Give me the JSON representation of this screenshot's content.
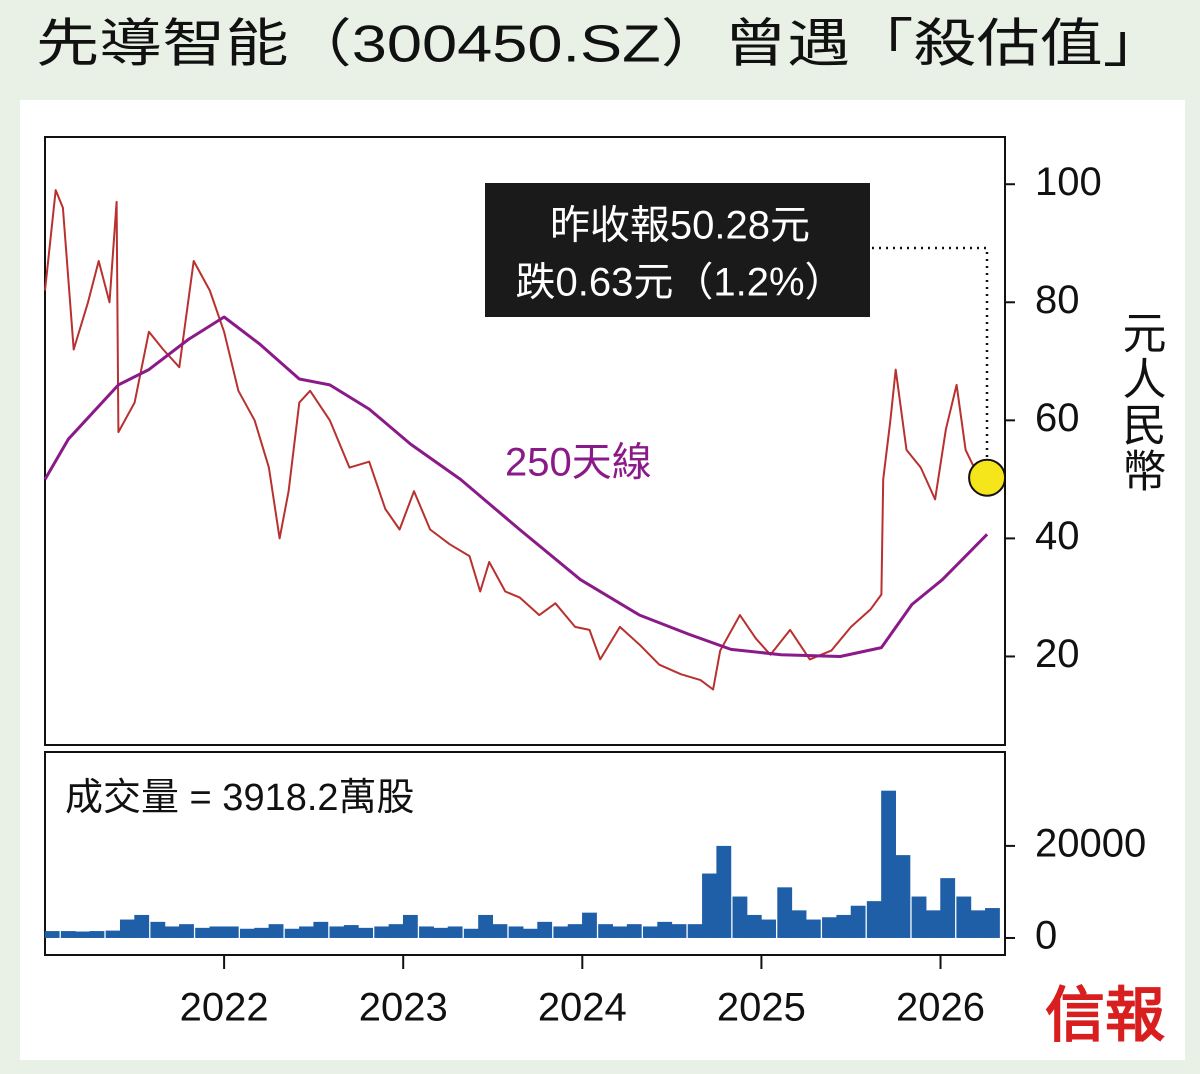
{
  "chart_data": [
    {
      "type": "line",
      "title": "先導智能（300450.SZ）曾遇「殺估值」",
      "y_label": "元人民幣",
      "annotations": [
        "昨收報50.28元",
        "跌0.63元（1.2%）"
      ],
      "xlim": [
        2021.0,
        2026.36
      ],
      "ylim": [
        5,
        108
      ],
      "yticks": [
        20,
        40,
        60,
        80,
        100
      ],
      "series": [
        {
          "color": "#b8312f",
          "x": [
            2021.0,
            2021.06,
            2021.1,
            2021.16,
            2021.24,
            2021.3,
            2021.36,
            2021.4,
            2021.41,
            2021.5,
            2021.58,
            2021.66,
            2021.75,
            2021.83,
            2021.92,
            2022.0,
            2022.08,
            2022.17,
            2022.25,
            2022.31,
            2022.36,
            2022.42,
            2022.48,
            2022.59,
            2022.7,
            2022.81,
            2022.9,
            2022.98,
            2023.06,
            2023.15,
            2023.26,
            2023.37,
            2023.43,
            2023.48,
            2023.57,
            2023.65,
            2023.76,
            2023.85,
            2023.96,
            2024.04,
            2024.1,
            2024.21,
            2024.32,
            2024.43,
            2024.55,
            2024.66,
            2024.73,
            2024.77,
            2024.88,
            2024.97,
            2025.05,
            2025.16,
            2025.27,
            2025.39,
            2025.5,
            2025.61,
            2025.67,
            2025.68,
            2025.72,
            2025.75,
            2025.81,
            2025.89,
            2025.97,
            2026.03,
            2026.09,
            2026.14,
            2026.22,
            2026.26
          ],
          "values": [
            82,
            99,
            96,
            72,
            80,
            87,
            80,
            97,
            58,
            63,
            75,
            72,
            69,
            87,
            82,
            75,
            65,
            60,
            52,
            40,
            48,
            63,
            65,
            60,
            52,
            53,
            45,
            41.5,
            48,
            41.5,
            39,
            37,
            31,
            36,
            31,
            30,
            27,
            29,
            25,
            24.5,
            19.5,
            25,
            22,
            18.6,
            17,
            16,
            14.4,
            21,
            27,
            23,
            20.3,
            24.5,
            19.5,
            21,
            25,
            28,
            30.5,
            50,
            60,
            68.6,
            55,
            52,
            46.6,
            58.5,
            66,
            55,
            50,
            50.28
          ]
        },
        {
          "name": "250天線",
          "color": "#8b1a89",
          "x": [
            2021.0,
            2021.13,
            2021.41,
            2021.58,
            2021.8,
            2022.0,
            2022.2,
            2022.42,
            2022.59,
            2022.81,
            2023.04,
            2023.32,
            2023.65,
            2023.99,
            2024.32,
            2024.6,
            2024.83,
            2025.11,
            2025.44,
            2025.67,
            2025.84,
            2026.01,
            2026.15,
            2026.26
          ],
          "values": [
            50,
            56.8,
            66,
            68.6,
            73.7,
            77.5,
            72.9,
            67,
            66,
            61.9,
            56,
            50,
            41.5,
            33,
            27,
            23.7,
            21.2,
            20.3,
            20,
            21.5,
            28.8,
            33,
            37.3,
            40.7
          ]
        }
      ]
    },
    {
      "type": "bar",
      "annotations": [
        "成交量 = 3918.2萬股"
      ],
      "color": "#1f5fa8",
      "xlim": [
        2021.0,
        2026.36
      ],
      "xticks": [
        2022,
        2023,
        2024,
        2025,
        2026
      ],
      "ylim": [
        -3700,
        40400
      ],
      "yticks": [
        0,
        20000
      ],
      "x": [
        2021.04,
        2021.13,
        2021.21,
        2021.29,
        2021.38,
        2021.46,
        2021.54,
        2021.63,
        2021.71,
        2021.79,
        2021.88,
        2021.96,
        2022.04,
        2022.13,
        2022.21,
        2022.29,
        2022.38,
        2022.46,
        2022.54,
        2022.63,
        2022.71,
        2022.79,
        2022.88,
        2022.96,
        2023.04,
        2023.13,
        2023.21,
        2023.29,
        2023.38,
        2023.46,
        2023.54,
        2023.63,
        2023.71,
        2023.79,
        2023.88,
        2023.96,
        2024.04,
        2024.13,
        2024.21,
        2024.29,
        2024.38,
        2024.46,
        2024.54,
        2024.63,
        2024.71,
        2024.79,
        2024.88,
        2024.96,
        2025.04,
        2025.13,
        2025.21,
        2025.29,
        2025.38,
        2025.46,
        2025.54,
        2025.63,
        2025.71,
        2025.79,
        2025.88,
        2025.96,
        2026.04,
        2026.13,
        2026.21,
        2026.29
      ],
      "values": [
        1500,
        1500,
        1400,
        1500,
        1600,
        4000,
        5000,
        3500,
        2500,
        3000,
        2200,
        2500,
        2500,
        2000,
        2200,
        3000,
        2000,
        2500,
        3500,
        2500,
        2800,
        2200,
        2500,
        3000,
        5000,
        2500,
        2200,
        2500,
        2000,
        5000,
        3000,
        2500,
        2000,
        3500,
        2500,
        3000,
        5500,
        3000,
        2500,
        3000,
        2500,
        3500,
        3000,
        3000,
        14000,
        20000,
        9000,
        5000,
        4000,
        11000,
        6000,
        4000,
        4500,
        5000,
        7000,
        8000,
        32000,
        18000,
        9000,
        6000,
        13000,
        9000,
        6000,
        6500
      ]
    }
  ],
  "logo": "信報"
}
